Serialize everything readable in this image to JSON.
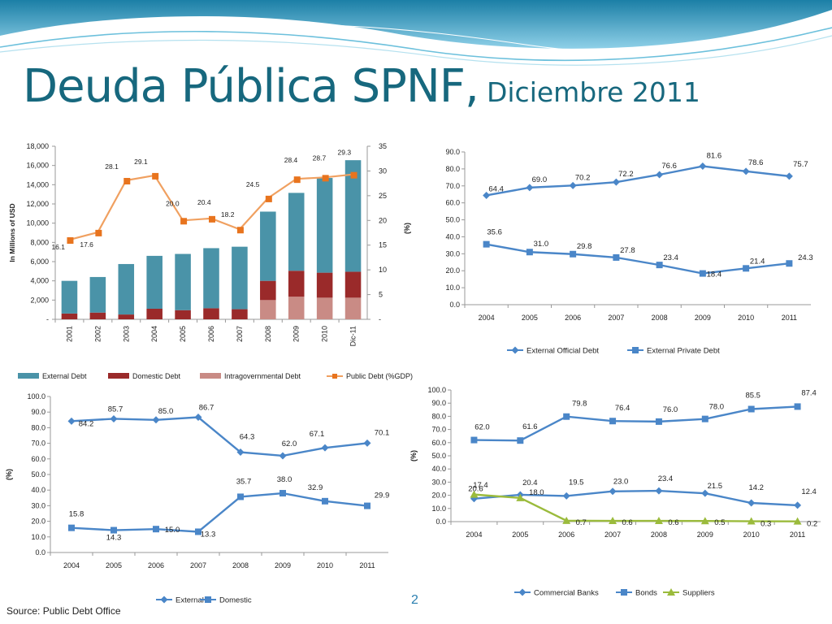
{
  "title": {
    "main": "Deuda Pública SPNF,",
    "sub": "Diciembre 2011"
  },
  "footer": {
    "source": "Source: Public Debt Office",
    "page": "2"
  },
  "colors": {
    "title": "#17687e",
    "accent": "#2a7fb0"
  },
  "chart_data": [
    {
      "id": "c1",
      "type": "bar",
      "stacked": true,
      "categories": [
        "2001",
        "2002",
        "2003",
        "2004",
        "2005",
        "2006",
        "2007",
        "2008",
        "2009",
        "2010",
        "Dic-11"
      ],
      "ylabel": "In Millions of USD",
      "ylim": [
        0,
        18000
      ],
      "yticks": [
        0,
        2000,
        4000,
        6000,
        8000,
        10000,
        12000,
        14000,
        16000,
        18000
      ],
      "ytick_labels": [
        "-",
        "2,000",
        "4,000",
        "6,000",
        "8,000",
        "10,000",
        "12,000",
        "14,000",
        "16,000",
        "18,000"
      ],
      "y2lim": [
        0,
        35
      ],
      "y2ticks": [
        0,
        5,
        10,
        15,
        20,
        25,
        30,
        35
      ],
      "y2tick_labels": [
        "-",
        "5",
        "10",
        "15",
        "20",
        "25",
        "30",
        "35"
      ],
      "series": [
        {
          "name": "Intragovernmental Debt",
          "color": "#c98b85",
          "values": [
            0,
            0,
            0,
            0,
            0,
            0,
            0,
            2000,
            2350,
            2250,
            2250
          ]
        },
        {
          "name": "Domestic Debt",
          "color": "#9a2a2a",
          "values": [
            600,
            700,
            500,
            1100,
            950,
            1150,
            1050,
            2000,
            2700,
            2600,
            2700
          ]
        },
        {
          "name": "External Debt",
          "color": "#4a93a8",
          "values": [
            3400,
            3700,
            5250,
            5500,
            5850,
            6250,
            6500,
            7200,
            8100,
            9850,
            11600
          ]
        }
      ],
      "line": {
        "name": "Public Debt (%GDP)",
        "color": "#f0a060",
        "marker_color": "#e8741e",
        "values": [
          16.1,
          17.6,
          28.1,
          29.1,
          20.0,
          20.4,
          18.2,
          24.5,
          28.4,
          28.7,
          29.3
        ],
        "labels": [
          "16.1",
          "17.6",
          "28.1",
          "29.1",
          "20.0",
          "20.4",
          "18.2",
          "24.5",
          "28.4",
          "28.7",
          "29.3"
        ]
      },
      "legend_order": [
        "External Debt",
        "Domestic Debt",
        "Intragovernmental Debt",
        "Public Debt (%GDP)"
      ],
      "legend": "bottom"
    },
    {
      "id": "c2",
      "type": "line",
      "categories": [
        "2004",
        "2005",
        "2006",
        "2007",
        "2008",
        "2009",
        "2010",
        "2011"
      ],
      "ylabel": "(%)",
      "ylim": [
        0,
        90
      ],
      "yticks": [
        0,
        10,
        20,
        30,
        40,
        50,
        60,
        70,
        80,
        90
      ],
      "series": [
        {
          "name": "External Official Debt",
          "color": "#4a86c8",
          "marker": "diamond",
          "values": [
            64.4,
            69.0,
            70.2,
            72.2,
            76.6,
            81.6,
            78.6,
            75.7
          ],
          "labels": [
            "64.4",
            "69.0",
            "70.2",
            "72.2",
            "76.6",
            "81.6",
            "78.6",
            "75.7"
          ]
        },
        {
          "name": "External Private Debt",
          "color": "#4a86c8",
          "marker": "square",
          "values": [
            35.6,
            31.0,
            29.8,
            27.8,
            23.4,
            18.4,
            21.4,
            24.3
          ],
          "labels": [
            "35.6",
            "31.0",
            "29.8",
            "27.8",
            "23.4",
            "18.4",
            "21.4",
            "24.3"
          ]
        }
      ],
      "legend": "bottom"
    },
    {
      "id": "c3",
      "type": "line",
      "categories": [
        "2004",
        "2005",
        "2006",
        "2007",
        "2008",
        "2009",
        "2010",
        "2011"
      ],
      "ylabel": "(%)",
      "ylim": [
        0,
        100
      ],
      "yticks": [
        0,
        10,
        20,
        30,
        40,
        50,
        60,
        70,
        80,
        90,
        100
      ],
      "series": [
        {
          "name": "External",
          "color": "#4a86c8",
          "marker": "diamond",
          "values": [
            84.2,
            85.7,
            85.0,
            86.7,
            64.3,
            62.0,
            67.1,
            70.1
          ],
          "labels": [
            "84.2",
            "85.7",
            "85.0",
            "86.7",
            "64.3",
            "62.0",
            "67.1",
            "70.1"
          ]
        },
        {
          "name": "Domestic",
          "color": "#4a86c8",
          "marker": "square",
          "values": [
            15.8,
            14.3,
            15.0,
            13.3,
            35.7,
            38.0,
            32.9,
            29.9
          ],
          "labels": [
            "15.8",
            "14.3",
            "15.0",
            "13.3",
            "35.7",
            "38.0",
            "32.9",
            "29.9"
          ]
        }
      ],
      "legend": "bottom"
    },
    {
      "id": "c4",
      "type": "line",
      "categories": [
        "2004",
        "2005",
        "2006",
        "2007",
        "2008",
        "2009",
        "2010",
        "2011"
      ],
      "ylabel": "(%)",
      "ylim": [
        0,
        100
      ],
      "yticks": [
        0,
        10,
        20,
        30,
        40,
        50,
        60,
        70,
        80,
        90,
        100
      ],
      "series": [
        {
          "name": "Commercial Banks",
          "color": "#4a86c8",
          "marker": "diamond",
          "values": [
            17.4,
            20.4,
            19.5,
            23.0,
            23.4,
            21.5,
            14.2,
            12.4
          ],
          "labels": [
            "17.4",
            "20.4",
            "19.5",
            "23.0",
            "23.4",
            "21.5",
            "14.2",
            "12.4"
          ]
        },
        {
          "name": "Bonds",
          "color": "#4a86c8",
          "marker": "square",
          "values": [
            62.0,
            61.6,
            79.8,
            76.4,
            76.0,
            78.0,
            85.5,
            87.4
          ],
          "labels": [
            "62.0",
            "61.6",
            "79.8",
            "76.4",
            "76.0",
            "78.0",
            "85.5",
            "87.4"
          ]
        },
        {
          "name": "Suppliers",
          "color": "#9bbb3c",
          "marker": "triangle",
          "values": [
            20.6,
            18.0,
            0.7,
            0.6,
            0.6,
            0.5,
            0.3,
            0.2
          ],
          "labels": [
            "20.6",
            "18.0",
            "0.7",
            "0.6",
            "0.6",
            "0.5",
            "0.3",
            "0.2"
          ]
        }
      ],
      "legend": "bottom"
    }
  ]
}
